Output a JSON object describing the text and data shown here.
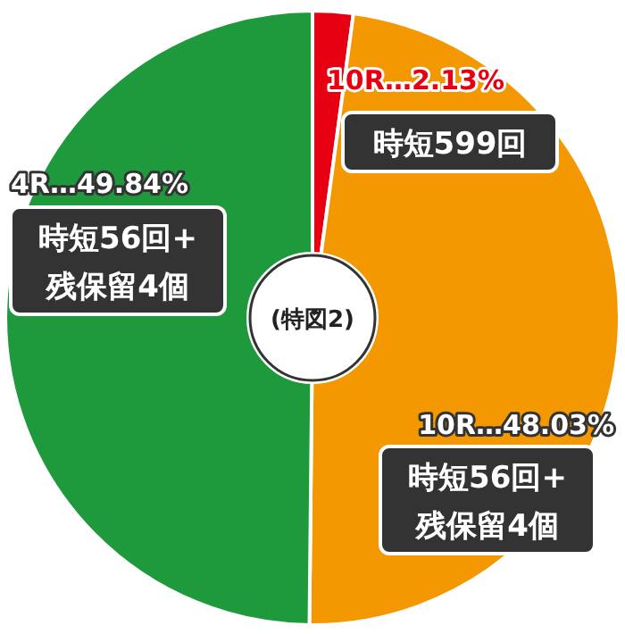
{
  "chart_data": {
    "type": "donut",
    "title": "(特図2)",
    "categories": [
      "10R",
      "10R",
      "4R"
    ],
    "values": [
      2.13,
      48.03,
      49.84
    ],
    "colors": [
      "#e60012",
      "#f39800",
      "#1e9a3c"
    ],
    "value_labels": [
      "…2.13%",
      "…48.03%",
      "…49.84%"
    ],
    "annotations": [
      "時短599回",
      "時短56回+\n残保留4個",
      "時短56回+\n残保留4個"
    ]
  }
}
